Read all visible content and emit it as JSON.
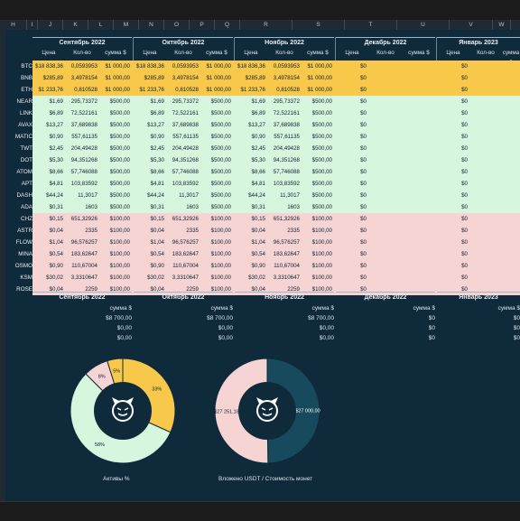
{
  "columns": [
    "H",
    "I",
    "J",
    "K",
    "L",
    "M",
    "N",
    "O",
    "P",
    "Q",
    "R",
    "S",
    "T",
    "U",
    "V",
    "W"
  ],
  "months": [
    "Сентябрь 2022",
    "Октябрь 2022",
    "Ноябрь 2022",
    "Декабрь 2022",
    "Январь 2023"
  ],
  "subheaders": [
    "Цена",
    "Кол-во",
    "сумма $"
  ],
  "rows": [
    {
      "ticker": "BTC",
      "group": "y",
      "sep": [
        "$18 838,36",
        "0,0593953",
        "$1 000,00"
      ],
      "oct": [
        "$18 838,36",
        "0,0593953",
        "$1 000,00"
      ],
      "nov": [
        "$18 836,36",
        "0,0593953",
        "$1 000,00"
      ],
      "dec": "$0",
      "jan": "$0"
    },
    {
      "ticker": "BNB",
      "group": "y",
      "sep": [
        "$285,89",
        "3,4978154",
        "$1 000,00"
      ],
      "oct": [
        "$285,89",
        "3,4978154",
        "$1 000,00"
      ],
      "nov": [
        "$285,89",
        "3,4978154",
        "$1 000,00"
      ],
      "dec": "$0",
      "jan": "$0"
    },
    {
      "ticker": "ETH",
      "group": "y",
      "sep": [
        "$1 233,76",
        "0,810528",
        "$1 000,00"
      ],
      "oct": [
        "$1 233,76",
        "0,810528",
        "$1 000,00"
      ],
      "nov": [
        "$1 233,76",
        "0,810528",
        "$1 000,00"
      ],
      "dec": "$0",
      "jan": "$0"
    },
    {
      "ticker": "NEAR",
      "group": "g",
      "sep": [
        "$1,69",
        "295,73372",
        "$500,00"
      ],
      "oct": [
        "$1,69",
        "295,73372",
        "$500,00"
      ],
      "nov": [
        "$1,69",
        "295,73372",
        "$500,00"
      ],
      "dec": "$0",
      "jan": "$0"
    },
    {
      "ticker": "LINK",
      "group": "g",
      "sep": [
        "$6,89",
        "72,522161",
        "$500,00"
      ],
      "oct": [
        "$6,89",
        "72,522161",
        "$500,00"
      ],
      "nov": [
        "$6,89",
        "72,522161",
        "$500,00"
      ],
      "dec": "$0",
      "jan": "$0"
    },
    {
      "ticker": "AVAX",
      "group": "g",
      "sep": [
        "$13,27",
        "37,689838",
        "$500,00"
      ],
      "oct": [
        "$13,27",
        "37,689838",
        "$500,00"
      ],
      "nov": [
        "$13,27",
        "37,689838",
        "$500,00"
      ],
      "dec": "$0",
      "jan": "$0"
    },
    {
      "ticker": "MATIC",
      "group": "g",
      "sep": [
        "$0,90",
        "557,61135",
        "$500,00"
      ],
      "oct": [
        "$0,90",
        "557,61135",
        "$500,00"
      ],
      "nov": [
        "$0,90",
        "557,61135",
        "$500,00"
      ],
      "dec": "$0",
      "jan": "$0"
    },
    {
      "ticker": "TWT",
      "group": "g",
      "sep": [
        "$2,45",
        "204,49428",
        "$500,00"
      ],
      "oct": [
        "$2,45",
        "204,49428",
        "$500,00"
      ],
      "nov": [
        "$2,45",
        "204,49428",
        "$500,00"
      ],
      "dec": "$0",
      "jan": "$0"
    },
    {
      "ticker": "DOT",
      "group": "g",
      "sep": [
        "$5,30",
        "94,351268",
        "$500,00"
      ],
      "oct": [
        "$5,30",
        "94,351268",
        "$500,00"
      ],
      "nov": [
        "$5,30",
        "94,351268",
        "$500,00"
      ],
      "dec": "$0",
      "jan": "$0"
    },
    {
      "ticker": "ATOM",
      "group": "g",
      "sep": [
        "$8,66",
        "57,746088",
        "$500,00"
      ],
      "oct": [
        "$8,66",
        "57,746088",
        "$500,00"
      ],
      "nov": [
        "$8,66",
        "57,746088",
        "$500,00"
      ],
      "dec": "$0",
      "jan": "$0"
    },
    {
      "ticker": "APT",
      "group": "g",
      "sep": [
        "$4,81",
        "103,83592",
        "$500,00"
      ],
      "oct": [
        "$4,81",
        "103,83592",
        "$500,00"
      ],
      "nov": [
        "$4,81",
        "103,83592",
        "$500,00"
      ],
      "dec": "$0",
      "jan": "$0"
    },
    {
      "ticker": "DASH",
      "group": "g",
      "sep": [
        "$44,24",
        "11,3017",
        "$500,00"
      ],
      "oct": [
        "$44,24",
        "11,3017",
        "$500,00"
      ],
      "nov": [
        "$44,24",
        "11,3017",
        "$500,00"
      ],
      "dec": "$0",
      "jan": "$0"
    },
    {
      "ticker": "ADA",
      "group": "g",
      "sep": [
        "$0,31",
        "1603",
        "$500,00"
      ],
      "oct": [
        "$0,31",
        "1603",
        "$500,00"
      ],
      "nov": [
        "$0,31",
        "1603",
        "$500,00"
      ],
      "dec": "$0",
      "jan": "$0"
    },
    {
      "ticker": "CHZ",
      "group": "p",
      "sep": [
        "$0,15",
        "651,32926",
        "$100,00"
      ],
      "oct": [
        "$0,15",
        "651,32926",
        "$100,00"
      ],
      "nov": [
        "$0,15",
        "651,32926",
        "$100,00"
      ],
      "dec": "$0",
      "jan": "$0"
    },
    {
      "ticker": "ASTR",
      "group": "p",
      "sep": [
        "$0,04",
        "2335",
        "$100,00"
      ],
      "oct": [
        "$0,04",
        "2335",
        "$100,00"
      ],
      "nov": [
        "$0,04",
        "2335",
        "$100,00"
      ],
      "dec": "$0",
      "jan": "$0"
    },
    {
      "ticker": "FLOW",
      "group": "p",
      "sep": [
        "$1,04",
        "96,576257",
        "$100,00"
      ],
      "oct": [
        "$1,04",
        "96,576257",
        "$100,00"
      ],
      "nov": [
        "$1,04",
        "96,576257",
        "$100,00"
      ],
      "dec": "$0",
      "jan": "$0"
    },
    {
      "ticker": "MINA",
      "group": "p",
      "sep": [
        "$0,54",
        "183,62647",
        "$100,00"
      ],
      "oct": [
        "$0,54",
        "183,62647",
        "$100,00"
      ],
      "nov": [
        "$0,54",
        "183,62647",
        "$100,00"
      ],
      "dec": "$0",
      "jan": "$0"
    },
    {
      "ticker": "OSMO",
      "group": "p",
      "sep": [
        "$0,90",
        "110,67004",
        "$100,00"
      ],
      "oct": [
        "$0,90",
        "110,67004",
        "$100,00"
      ],
      "nov": [
        "$0,90",
        "110,67004",
        "$100,00"
      ],
      "dec": "$0",
      "jan": "$0"
    },
    {
      "ticker": "KSM",
      "group": "p",
      "sep": [
        "$30,02",
        "3,3310647",
        "$100,00"
      ],
      "oct": [
        "$30,02",
        "3,3310647",
        "$100,00"
      ],
      "nov": [
        "$30,02",
        "3,3310647",
        "$100,00"
      ],
      "dec": "$0",
      "jan": "$0"
    },
    {
      "ticker": "ROSE",
      "group": "p",
      "sep": [
        "$0,04",
        "2259",
        "$100,00"
      ],
      "oct": [
        "$0,04",
        "2259",
        "$100,00"
      ],
      "nov": [
        "$0,04",
        "2259",
        "$100,00"
      ],
      "dec": "$0",
      "jan": "$0"
    }
  ],
  "summary": {
    "label": "сумма $",
    "values": [
      "$8 700,00",
      "$0,00",
      "$0,00"
    ],
    "right_values": [
      "$8 700,00",
      "$0,00",
      "$0,00"
    ],
    "nov_values": [
      "$8 700,00",
      "$0,00",
      "$0,00"
    ],
    "dec_values": [
      "$0",
      "$0",
      "$0"
    ],
    "jan_values": [
      "$0",
      "$0",
      "$0"
    ]
  },
  "chart_data": [
    {
      "type": "pie",
      "title": "Активы %",
      "labels": [
        "33%",
        "58%",
        "8%",
        "5%"
      ],
      "values": [
        33,
        58,
        8,
        5
      ],
      "colors": [
        "#f7c84a",
        "#d7f6de",
        "#f6d4d4",
        "#f7c84a"
      ]
    },
    {
      "type": "pie",
      "title": "Вложено USDT / Стоимость монет",
      "labels": [
        "$27 000,00",
        "$27 251,18"
      ],
      "values": [
        27000,
        27251.18
      ],
      "colors": [
        "#174a5c",
        "#f6d4d4"
      ]
    }
  ],
  "colors": {
    "yellow": "#f7c84a",
    "green": "#d7f6de",
    "pink": "#f6d4d4",
    "bg": "#0f2a3a"
  }
}
